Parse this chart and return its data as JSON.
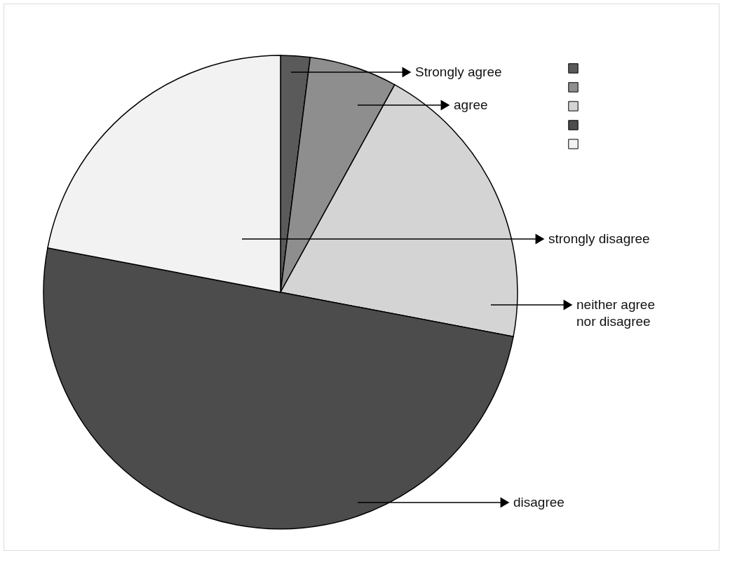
{
  "chart_data": {
    "type": "pie",
    "categories": [
      "Strongly agree",
      "agree",
      "neither agree nor disagree",
      "disagree",
      "strongly disagree"
    ],
    "values": [
      2,
      6,
      20,
      50,
      22
    ],
    "colors": [
      "#5a5a5a",
      "#8e8e8e",
      "#d4d4d4",
      "#4c4c4c",
      "#f2f2f2"
    ],
    "legend": "top right"
  }
}
